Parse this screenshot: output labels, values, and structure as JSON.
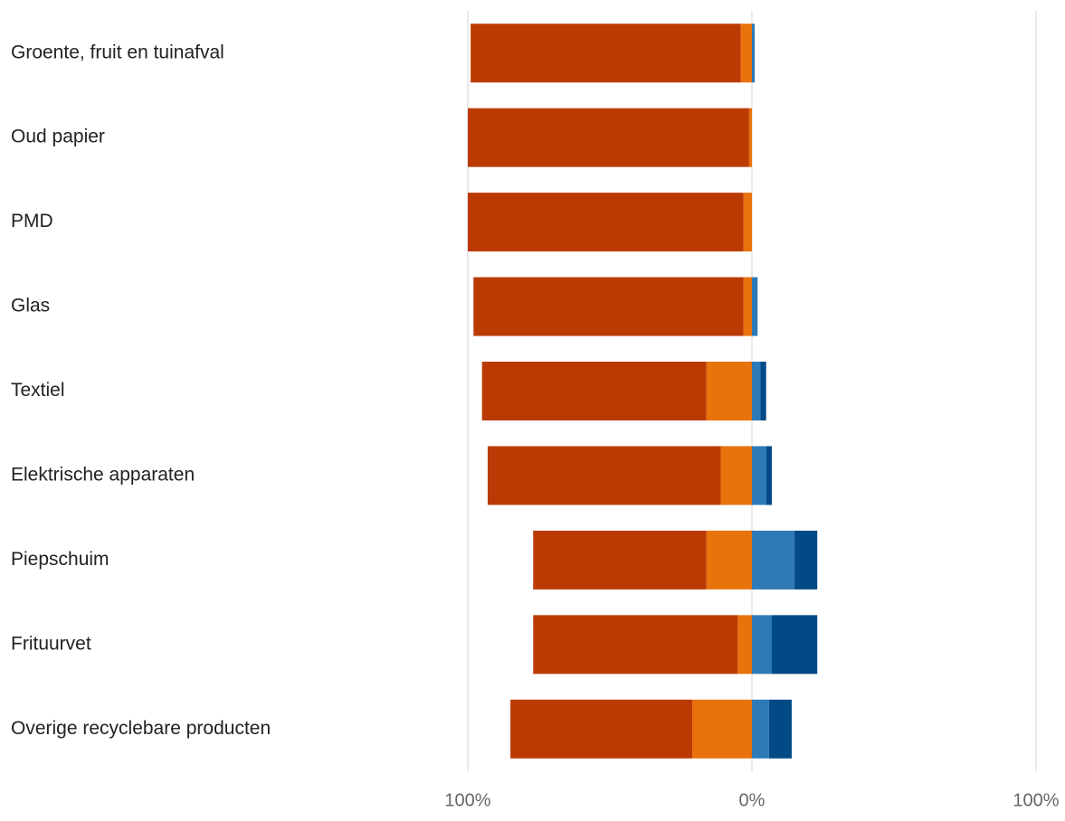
{
  "chart_data": {
    "type": "diverging-bar",
    "categories": [
      "Groente, fruit en tuinafval",
      "Oud papier",
      "PMD",
      "Glas",
      "Textiel",
      "Elektrische apparaten",
      "Piepschuim",
      "Frituurvet",
      "Overige recyclebare producten"
    ],
    "series": [
      {
        "color": "#e8720c",
        "values": [
          -4,
          -1,
          -3,
          -3,
          -16,
          -11,
          -16,
          -5,
          -21
        ]
      },
      {
        "color": "#bb3a04",
        "values": [
          -95,
          -99,
          -97,
          -95,
          -79,
          -82,
          -61,
          -72,
          -64
        ]
      },
      {
        "color": "#2e7ab6",
        "values": [
          1,
          0,
          0,
          2,
          3,
          5,
          15,
          7,
          6
        ]
      },
      {
        "color": "#024a86",
        "values": [
          0,
          0,
          0,
          0,
          2,
          2,
          8,
          16,
          8
        ]
      }
    ],
    "xlim": [
      -100,
      100
    ],
    "xticks": [
      {
        "value": -100,
        "label": "100%"
      },
      {
        "value": 0,
        "label": "0%"
      },
      {
        "value": 100,
        "label": "100%"
      }
    ],
    "grid": true
  }
}
